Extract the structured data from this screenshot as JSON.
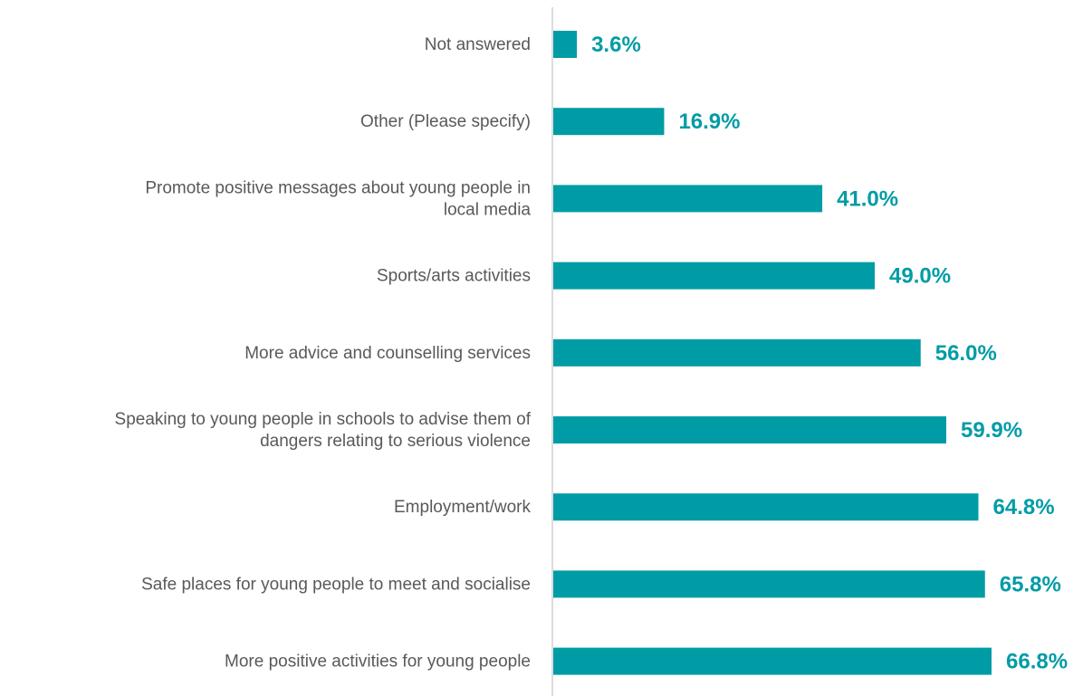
{
  "chart_data": {
    "type": "bar",
    "orientation": "horizontal",
    "categories": [
      "Not answered",
      "Other (Please specify)",
      "Promote positive messages about young people in local media",
      "Sports/arts activities",
      "More advice and counselling services",
      "Speaking to young people in schools to advise them of dangers relating to serious violence",
      "Employment/work",
      "Safe places for young people to meet and socialise",
      "More positive activities for young people"
    ],
    "category_lines": [
      [
        "Not answered"
      ],
      [
        "Other (Please specify)"
      ],
      [
        "Promote positive messages about young people in",
        "local media"
      ],
      [
        "Sports/arts activities"
      ],
      [
        "More advice and counselling services"
      ],
      [
        "Speaking to young people in schools to advise them of",
        "dangers relating to serious violence"
      ],
      [
        "Employment/work"
      ],
      [
        "Safe places for young people to meet and socialise"
      ],
      [
        "More positive activities for young people"
      ]
    ],
    "values": [
      3.6,
      16.9,
      41.0,
      49.0,
      56.0,
      59.9,
      64.8,
      65.8,
      66.8
    ],
    "value_labels": [
      "3.6%",
      "16.9%",
      "41.0%",
      "49.0%",
      "56.0%",
      "59.9%",
      "64.8%",
      "65.8%",
      "66.8%"
    ],
    "unit": "%",
    "xlim": [
      0,
      80
    ],
    "grid": false,
    "legend": "none",
    "bar_color": "#009ca6",
    "label_color": "#009ca6",
    "axis_color": "#d0d0d0",
    "text_color": "#595959"
  }
}
